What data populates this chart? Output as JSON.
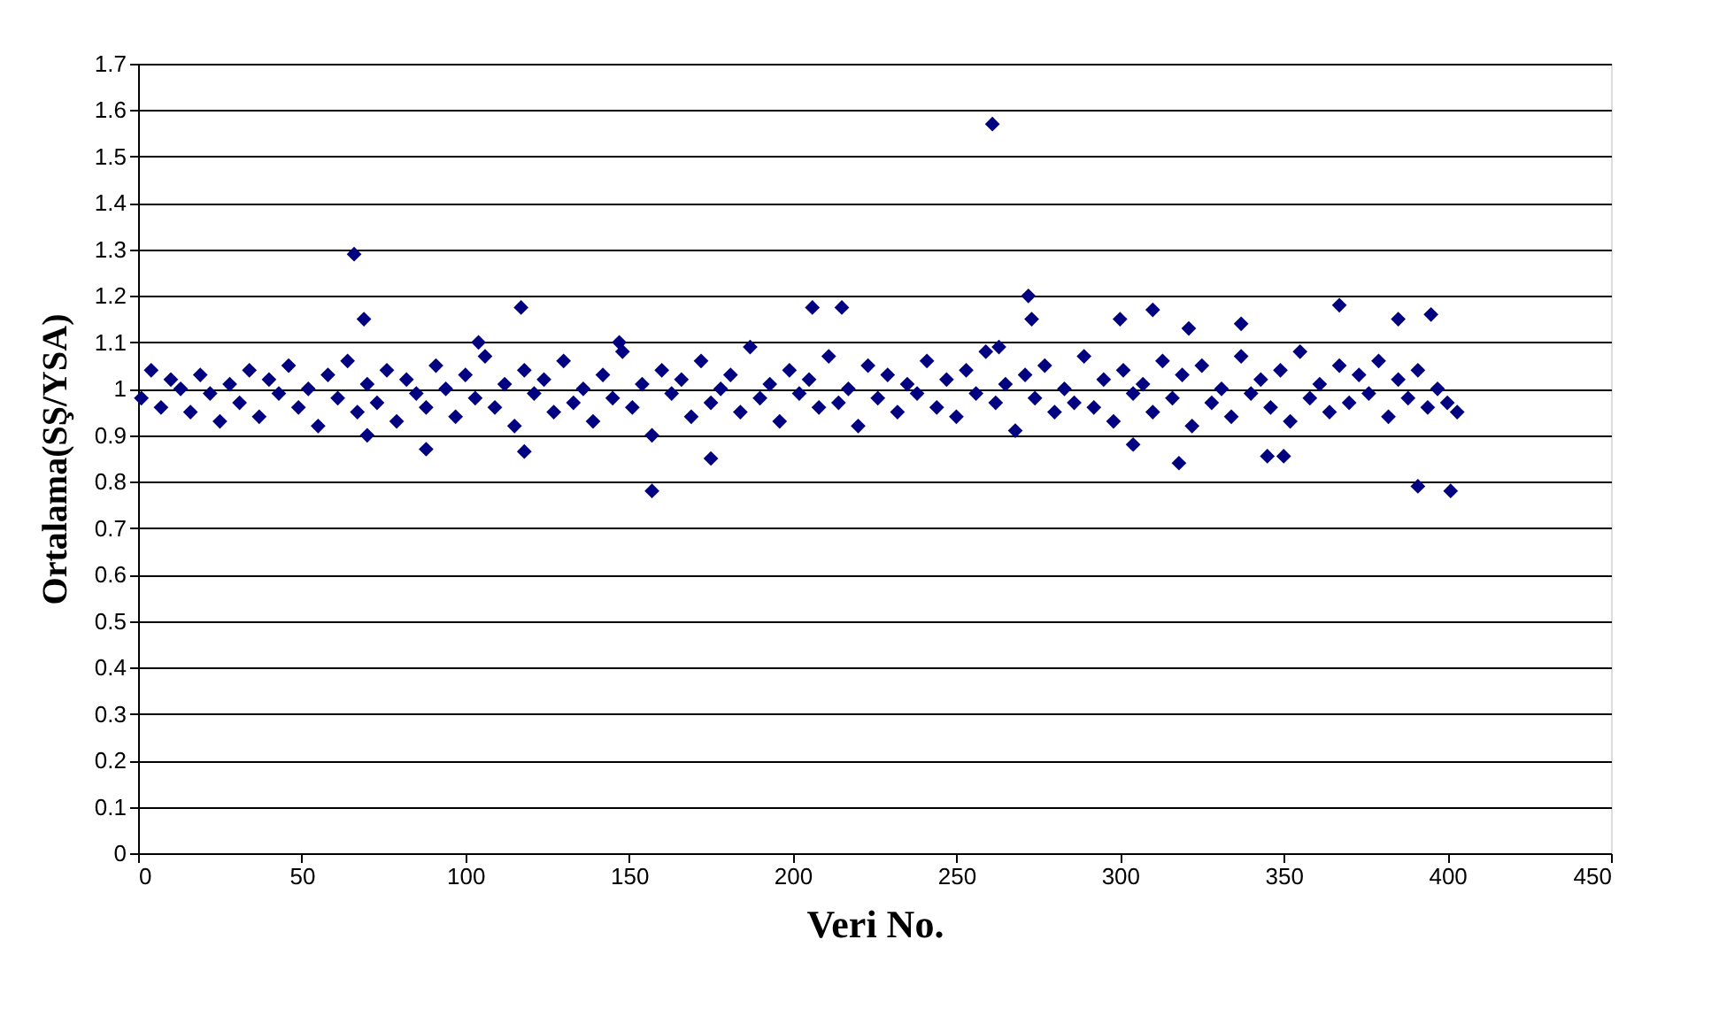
{
  "chart_data": {
    "type": "scatter",
    "xlabel": "Veri No.",
    "ylabel": "Ortalama(SŞ/YSA)",
    "xlim": [
      0,
      450
    ],
    "xticks": [
      0,
      50,
      100,
      150,
      200,
      250,
      300,
      350,
      400,
      450
    ],
    "ylim": [
      0,
      1.7
    ],
    "yticks": [
      0,
      0.1,
      0.2,
      0.3,
      0.4,
      0.5,
      0.6,
      0.7,
      0.8,
      0.9,
      1,
      1.1,
      1.2,
      1.3,
      1.4,
      1.5,
      1.6,
      1.7
    ],
    "grid": "y",
    "marker": "diamond",
    "legend": false,
    "series": [
      {
        "color": "#000080",
        "x": [
          1,
          4,
          7,
          10,
          13,
          16,
          19,
          22,
          25,
          28,
          31,
          34,
          37,
          40,
          43,
          46,
          49,
          52,
          55,
          58,
          61,
          64,
          67,
          70,
          73,
          76,
          79,
          82,
          85,
          88,
          91,
          94,
          97,
          100,
          103,
          106,
          109,
          112,
          115,
          118,
          121,
          124,
          127,
          130,
          133,
          136,
          139,
          142,
          145,
          148,
          151,
          154,
          157,
          160,
          163,
          166,
          169,
          172,
          175,
          178,
          181,
          184,
          187,
          190,
          193,
          196,
          199,
          202,
          205,
          208,
          211,
          214,
          217,
          220,
          223,
          226,
          229,
          232,
          235,
          238,
          241,
          244,
          247,
          250,
          253,
          256,
          259,
          262,
          265,
          268,
          271,
          274,
          277,
          280,
          283,
          286,
          289,
          292,
          295,
          298,
          301,
          304,
          307,
          310,
          313,
          316,
          319,
          322,
          325,
          328,
          331,
          334,
          337,
          340,
          343,
          346,
          349,
          352,
          355,
          358,
          361,
          364,
          367,
          370,
          373,
          376,
          379,
          382,
          385,
          388,
          391,
          394,
          397,
          400,
          403,
          66,
          69,
          70,
          88,
          104,
          117,
          118,
          147,
          157,
          175,
          206,
          215,
          261,
          263,
          272,
          273,
          300,
          304,
          310,
          318,
          321,
          337,
          345,
          350,
          367,
          385,
          391,
          395,
          401
        ],
        "values": [
          0.98,
          1.04,
          0.96,
          1.02,
          1.0,
          0.95,
          1.03,
          0.99,
          0.93,
          1.01,
          0.97,
          1.04,
          0.94,
          1.02,
          0.99,
          1.05,
          0.96,
          1.0,
          0.92,
          1.03,
          0.98,
          1.06,
          0.95,
          1.01,
          0.97,
          1.04,
          0.93,
          1.02,
          0.99,
          0.96,
          1.05,
          1.0,
          0.94,
          1.03,
          0.98,
          1.07,
          0.96,
          1.01,
          0.92,
          1.04,
          0.99,
          1.02,
          0.95,
          1.06,
          0.97,
          1.0,
          0.93,
          1.03,
          0.98,
          1.08,
          0.96,
          1.01,
          0.9,
          1.04,
          0.99,
          1.02,
          0.94,
          1.06,
          0.97,
          1.0,
          1.03,
          0.95,
          1.09,
          0.98,
          1.01,
          0.93,
          1.04,
          0.99,
          1.02,
          0.96,
          1.07,
          0.97,
          1.0,
          0.92,
          1.05,
          0.98,
          1.03,
          0.95,
          1.01,
          0.99,
          1.06,
          0.96,
          1.02,
          0.94,
          1.04,
          0.99,
          1.08,
          0.97,
          1.01,
          0.91,
          1.03,
          0.98,
          1.05,
          0.95,
          1.0,
          0.97,
          1.07,
          0.96,
          1.02,
          0.93,
          1.04,
          0.99,
          1.01,
          0.95,
          1.06,
          0.98,
          1.03,
          0.92,
          1.05,
          0.97,
          1.0,
          0.94,
          1.07,
          0.99,
          1.02,
          0.96,
          1.04,
          0.93,
          1.08,
          0.98,
          1.01,
          0.95,
          1.05,
          0.97,
          1.03,
          0.99,
          1.06,
          0.94,
          1.02,
          0.98,
          1.04,
          0.96,
          1.0,
          0.97,
          0.95,
          1.29,
          1.15,
          0.9,
          0.87,
          1.1,
          1.175,
          0.865,
          1.1,
          0.78,
          0.85,
          1.175,
          1.175,
          1.57,
          1.09,
          1.2,
          1.15,
          1.15,
          0.88,
          1.17,
          0.84,
          1.13,
          1.14,
          0.855,
          0.855,
          1.18,
          1.15,
          0.79,
          1.16,
          0.78
        ]
      }
    ]
  }
}
